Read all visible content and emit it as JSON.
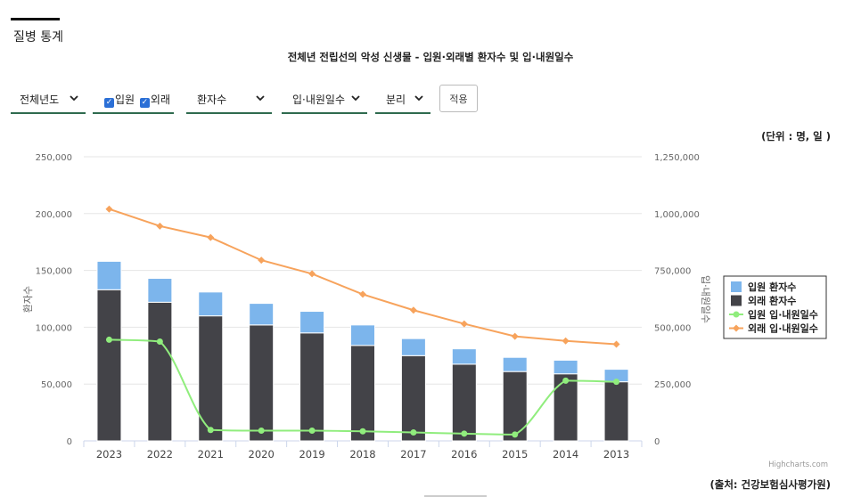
{
  "page": {
    "heading": "질병 통계"
  },
  "filters": {
    "year": "전체년도",
    "inpatient_label": "입원",
    "outpatient_label": "외래",
    "metric1": "환자수",
    "metric2": "입·내원일수",
    "mode": "분리",
    "apply": "적용"
  },
  "unit_note": "(단위 :    명, 일 )",
  "source_note": "(출처: 건강보험심사평가원)",
  "credit": "Highcharts.com",
  "colors": {
    "inpatient_patients": "#7cb5ec",
    "outpatient_patients": "#434348",
    "inpatient_days": "#90ed7d",
    "outpatient_days": "#f7a35c",
    "filter_underline": "#2f6b4f",
    "checkbox": "#2b6fd6"
  },
  "chart_data": {
    "type": "bar",
    "title": "전체년   전립선의 악성 신생물 - 입원·외래별 환자수 및 입·내원일수",
    "categories": [
      "2023",
      "2022",
      "2021",
      "2020",
      "2019",
      "2018",
      "2017",
      "2016",
      "2015",
      "2014",
      "2013"
    ],
    "y_left": {
      "label": "환자수",
      "min": 0,
      "max": 250000,
      "ticks": [
        "0",
        "50,000",
        "100,000",
        "150,000",
        "200,000",
        "250,000"
      ]
    },
    "y_right": {
      "label": "입·내원일수",
      "min": 0,
      "max": 1250000,
      "ticks": [
        "0",
        "250,000",
        "500,000",
        "750,000",
        "1,000,000",
        "1,250,000"
      ]
    },
    "stacked": true,
    "grid": true,
    "legend_position": "right",
    "series": [
      {
        "name": "입원 환자수",
        "type": "bar",
        "axis": "left",
        "values": [
          25000,
          21000,
          21000,
          19000,
          19000,
          18000,
          15000,
          13500,
          12500,
          12000,
          11000
        ]
      },
      {
        "name": "외래 환자수",
        "type": "bar",
        "axis": "left",
        "values": [
          133000,
          122000,
          110000,
          102000,
          95000,
          84000,
          75000,
          67500,
          61000,
          59000,
          52000
        ]
      },
      {
        "name": "입원 입·내원일수",
        "type": "line",
        "axis": "right",
        "values": [
          445000,
          437000,
          48000,
          45000,
          45000,
          42000,
          37000,
          32000,
          28000,
          265000,
          260000
        ]
      },
      {
        "name": "외래 입·내원일수",
        "type": "line",
        "axis": "right",
        "values": [
          1020000,
          945000,
          895000,
          795000,
          735000,
          645000,
          575000,
          515000,
          460000,
          440000,
          425000
        ]
      }
    ]
  }
}
